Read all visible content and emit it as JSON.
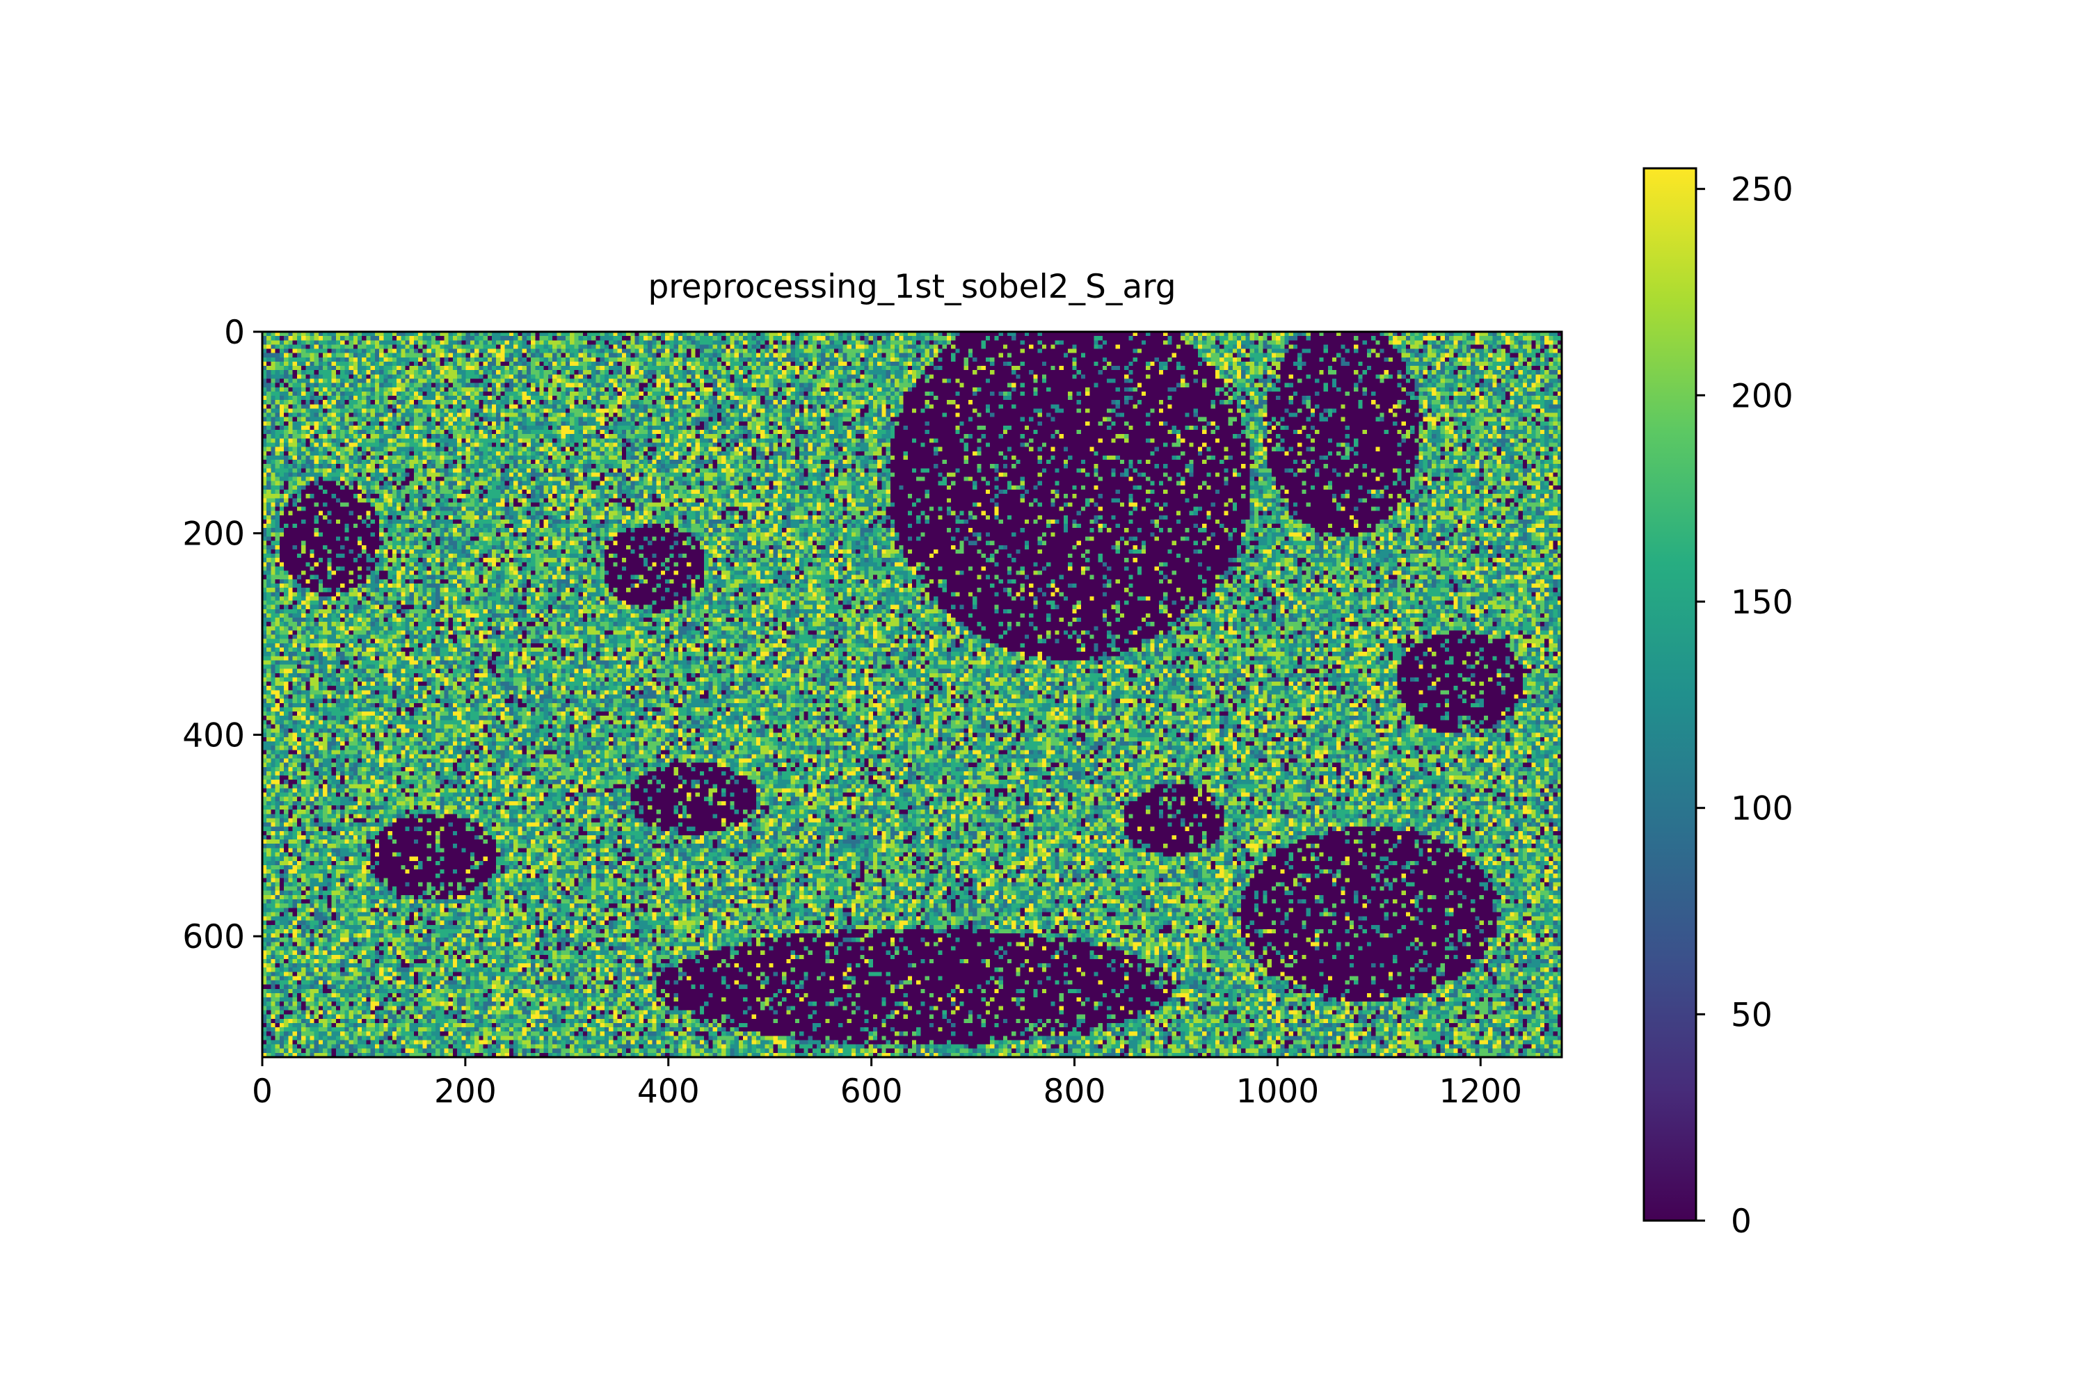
{
  "chart_data": {
    "type": "heatmap",
    "title": "preprocessing_1st_sobel2_S_arg",
    "xlabel": "",
    "ylabel": "",
    "xlim": [
      0,
      1280
    ],
    "ylim": [
      720,
      0
    ],
    "x_ticks": [
      0,
      200,
      400,
      600,
      800,
      1000,
      1200
    ],
    "y_ticks": [
      0,
      200,
      400,
      600
    ],
    "colormap": "viridis",
    "color_range": [
      0,
      255
    ],
    "colorbar_ticks": [
      0,
      50,
      100,
      150,
      200,
      250
    ],
    "grid": false,
    "colors": {
      "viridis_low": "#440154",
      "viridis_mid": "#21918c",
      "viridis_high": "#fde725"
    }
  }
}
